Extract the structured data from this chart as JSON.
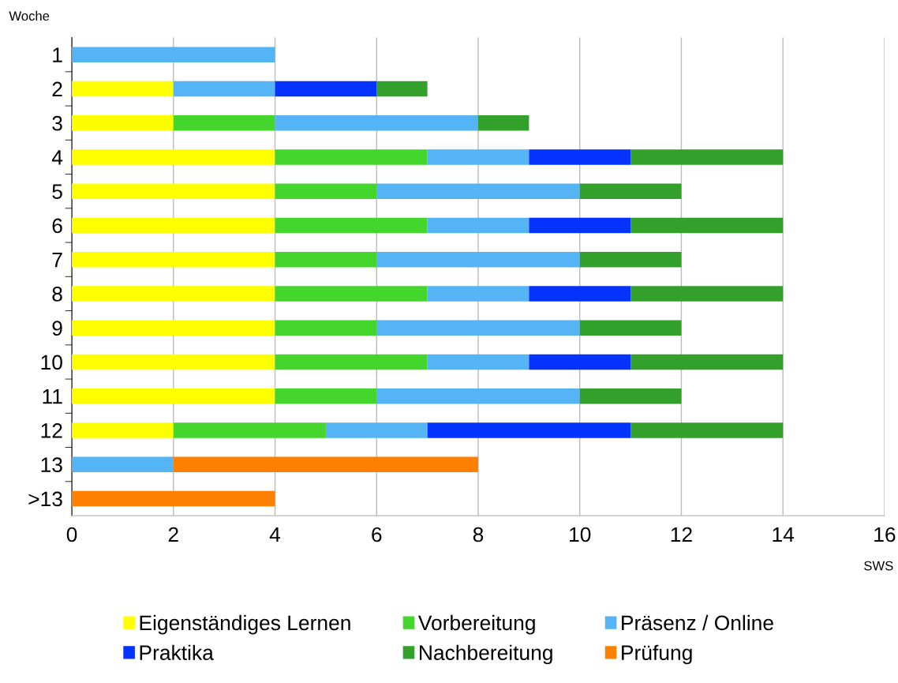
{
  "chart_data": {
    "type": "bar",
    "orientation": "horizontal",
    "stacked": true,
    "ylabel": "Woche",
    "xlabel": "SWS",
    "categories": [
      "1",
      "2",
      "3",
      "4",
      "5",
      "6",
      "7",
      "8",
      "9",
      "10",
      "11",
      "12",
      "13",
      ">13"
    ],
    "series": [
      {
        "name": "Eigenständiges Lernen",
        "color": "#ffff00",
        "values": [
          null,
          2,
          2,
          4,
          4,
          4,
          4,
          4,
          4,
          4,
          4,
          2,
          null,
          null
        ]
      },
      {
        "name": "Vorbereitung",
        "color": "#44d62c",
        "values": [
          null,
          null,
          2,
          3,
          2,
          3,
          2,
          3,
          2,
          3,
          2,
          3,
          null,
          null
        ]
      },
      {
        "name": "Präsenz / Online",
        "color": "#55b4f5",
        "values": [
          4,
          2,
          4,
          2,
          4,
          2,
          4,
          2,
          4,
          2,
          4,
          2,
          2,
          null
        ]
      },
      {
        "name": "Praktika",
        "color": "#0433ff",
        "values": [
          null,
          2,
          null,
          2,
          null,
          2,
          null,
          2,
          null,
          2,
          null,
          4,
          null,
          null
        ]
      },
      {
        "name": "Nachbereitung",
        "color": "#33a02c",
        "values": [
          null,
          1,
          1,
          3,
          2,
          3,
          2,
          3,
          2,
          3,
          2,
          3,
          null,
          null
        ]
      },
      {
        "name": "Prüfung",
        "color": "#ff8000",
        "values": [
          null,
          null,
          null,
          null,
          null,
          null,
          null,
          null,
          null,
          null,
          null,
          null,
          6,
          4
        ]
      }
    ],
    "xlim": [
      0,
      16
    ],
    "xticks": [
      0,
      2,
      4,
      6,
      8,
      10,
      12,
      14,
      16
    ],
    "grid": "x",
    "legend": "bottom"
  }
}
